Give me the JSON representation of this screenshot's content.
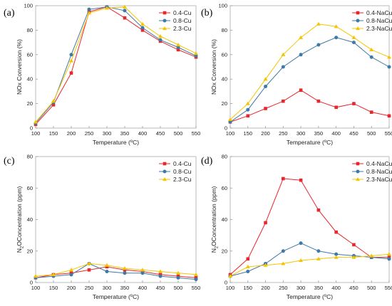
{
  "figure": {
    "colors": {
      "red": "#e8262c",
      "blue": "#3d7aa6",
      "yellow": "#f5c400",
      "gray": "#bbbbbb"
    },
    "panels": [
      {
        "letter": "(a)",
        "chart_data": {
          "type": "line",
          "x": [
            100,
            150,
            200,
            250,
            300,
            350,
            400,
            450,
            500,
            550
          ],
          "xlim": [
            100,
            550
          ],
          "ylim": [
            0,
            100
          ],
          "xticks": [
            "100",
            "150",
            "200",
            "250",
            "300",
            "350",
            "400",
            "450",
            "500",
            "550"
          ],
          "yticks": [
            "0",
            "20",
            "40",
            "60",
            "80",
            "100"
          ],
          "xlabel_main": "Temperature (",
          "xlabel_sup": "o",
          "xlabel_tail": "C)",
          "ylabel": "NOx Conversion (%)",
          "legend_position": "top-right",
          "series": [
            {
              "name": "0.4-Cu",
              "color": "#e8262c",
              "marker": "square",
              "values": [
                3,
                19,
                45,
                95,
                99,
                90,
                80,
                71,
                64,
                58
              ]
            },
            {
              "name": "0.8-Cu",
              "color": "#3d7aa6",
              "marker": "circle",
              "values": [
                4,
                21,
                60,
                97,
                99,
                96,
                82,
                72,
                66,
                59
              ]
            },
            {
              "name": "2.3-Cu",
              "color": "#f5c400",
              "marker": "triangle",
              "values": [
                5,
                22,
                55,
                94,
                98,
                99,
                85,
                75,
                68,
                61
              ]
            }
          ]
        }
      },
      {
        "letter": "(b)",
        "chart_data": {
          "type": "line",
          "x": [
            100,
            150,
            200,
            250,
            300,
            350,
            400,
            450,
            500,
            550
          ],
          "xlim": [
            100,
            550
          ],
          "ylim": [
            0,
            100
          ],
          "xticks": [
            "100",
            "150",
            "200",
            "250",
            "300",
            "350",
            "400",
            "450",
            "500",
            "550"
          ],
          "yticks": [
            "0",
            "20",
            "40",
            "60",
            "80",
            "100"
          ],
          "xlabel_main": "Temperature (",
          "xlabel_sup": "o",
          "xlabel_tail": "C)",
          "ylabel": "NOx Conversion (%)",
          "legend_position": "top-right",
          "series": [
            {
              "name": "0.4-NaCu",
              "color": "#e8262c",
              "marker": "square",
              "values": [
                5,
                10,
                16,
                22,
                31,
                22,
                17,
                20,
                13,
                10
              ]
            },
            {
              "name": "0.8-NaCu",
              "color": "#3d7aa6",
              "marker": "circle",
              "values": [
                5,
                15,
                34,
                50,
                60,
                68,
                74,
                70,
                58,
                50
              ]
            },
            {
              "name": "2.3-NaCu",
              "color": "#f5c400",
              "marker": "triangle",
              "values": [
                7,
                20,
                40,
                60,
                74,
                85,
                83,
                74,
                64,
                58
              ]
            }
          ]
        }
      },
      {
        "letter": "(c)",
        "chart_data": {
          "type": "line",
          "x": [
            100,
            150,
            200,
            250,
            300,
            350,
            400,
            450,
            500,
            550
          ],
          "xlim": [
            100,
            550
          ],
          "ylim": [
            0,
            80
          ],
          "xticks": [
            "100",
            "150",
            "200",
            "250",
            "300",
            "350",
            "400",
            "450",
            "500",
            "550"
          ],
          "yticks": [
            "0",
            "20",
            "40",
            "60",
            "80"
          ],
          "xlabel_main": "Temperature (",
          "xlabel_sup": "o",
          "xlabel_tail": "C)",
          "ylabel_pre": "N",
          "ylabel_sub": "2",
          "ylabel_post": "OConcentration (ppm)",
          "legend_position": "top-right",
          "series": [
            {
              "name": "0.4-Cu",
              "color": "#e8262c",
              "marker": "square",
              "values": [
                3,
                5,
                6,
                8,
                10,
                8,
                7,
                5,
                4,
                3
              ]
            },
            {
              "name": "0.8-Cu",
              "color": "#3d7aa6",
              "marker": "circle",
              "values": [
                3,
                4,
                5,
                12,
                7,
                6,
                6,
                4,
                3,
                2
              ]
            },
            {
              "name": "2.3-Cu",
              "color": "#f5c400",
              "marker": "triangle",
              "values": [
                4,
                5,
                8,
                12,
                11,
                9,
                8,
                7,
                6,
                5
              ]
            }
          ]
        }
      },
      {
        "letter": "(d)",
        "chart_data": {
          "type": "line",
          "x": [
            100,
            150,
            200,
            250,
            300,
            350,
            400,
            450,
            500,
            550
          ],
          "xlim": [
            100,
            550
          ],
          "ylim": [
            0,
            80
          ],
          "xticks": [
            "100",
            "150",
            "200",
            "250",
            "300",
            "350",
            "400",
            "450",
            "500",
            "550"
          ],
          "yticks": [
            "0",
            "20",
            "40",
            "60",
            "80"
          ],
          "xlabel_main": "Temperature (",
          "xlabel_sup": "o",
          "xlabel_tail": "C)",
          "ylabel_pre": "N",
          "ylabel_sub": "2",
          "ylabel_post": "OConcentration (ppm)",
          "legend_position": "top-right",
          "series": [
            {
              "name": "0.4-NaCu",
              "color": "#e8262c",
              "marker": "square",
              "values": [
                5,
                15,
                38,
                66,
                65,
                46,
                32,
                24,
                16,
                16
              ]
            },
            {
              "name": "0.8-NaCu",
              "color": "#3d7aa6",
              "marker": "circle",
              "values": [
                4,
                7,
                12,
                20,
                25,
                20,
                18,
                17,
                16,
                15
              ]
            },
            {
              "name": "2.3-NaCu",
              "color": "#f5c400",
              "marker": "triangle",
              "values": [
                4,
                10,
                11,
                12,
                14,
                15,
                16,
                16,
                17,
                18
              ]
            }
          ]
        }
      }
    ]
  }
}
